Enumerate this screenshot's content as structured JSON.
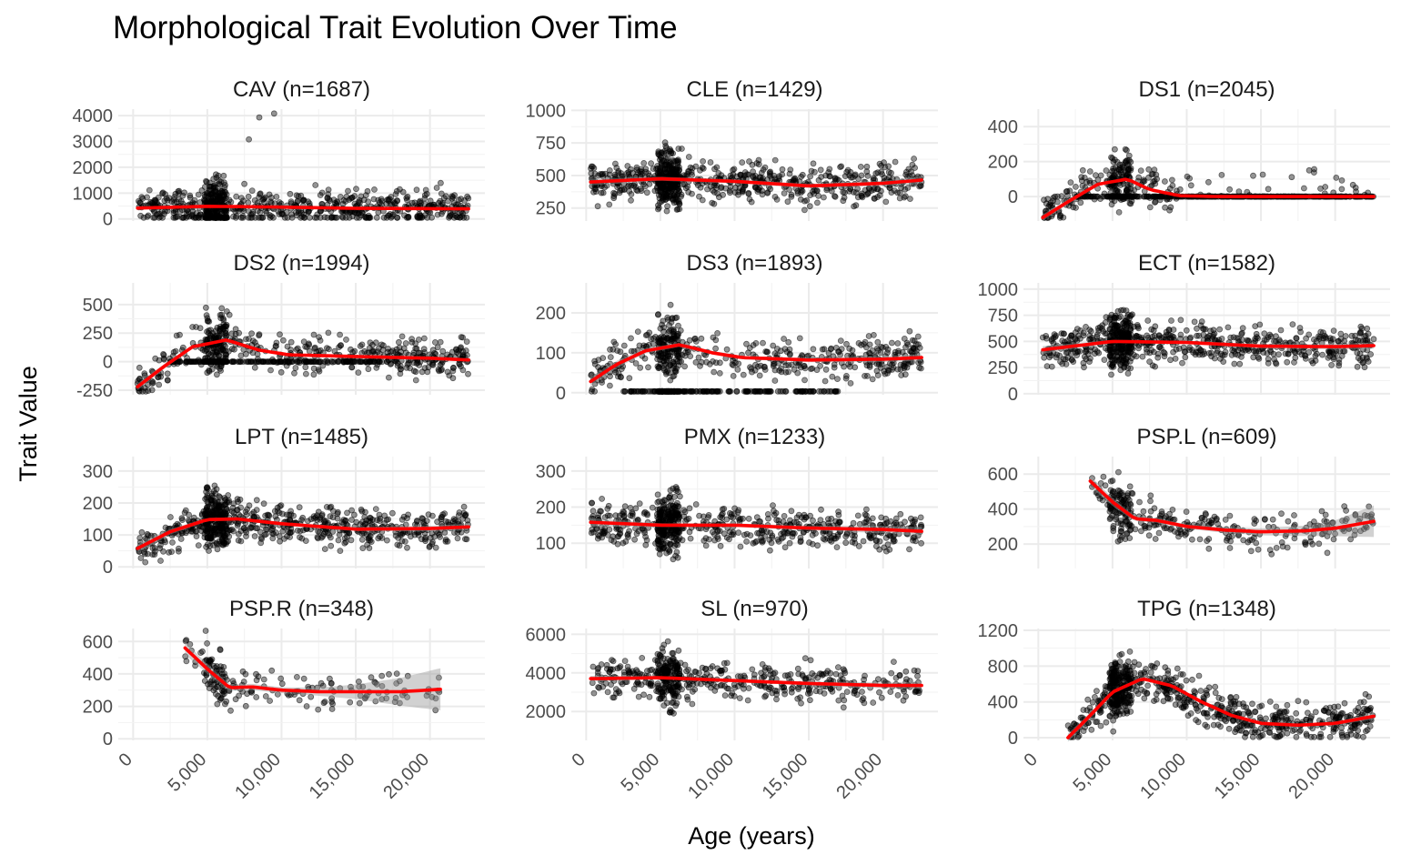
{
  "chart_data": {
    "type": "scatter",
    "title": "Morphological Trait Evolution Over Time",
    "xlabel": "Age (years)",
    "ylabel": "Trait Value",
    "facet_layout": {
      "rows": 4,
      "cols": 3,
      "shared_x": true,
      "free_y": true
    },
    "grid": true,
    "point_color": "#000000",
    "smooth_color": "#ff0000",
    "ribbon_color": "#999999",
    "xlim": [
      -1000,
      23700
    ],
    "xticks": [
      0,
      5000,
      10000,
      15000,
      20000
    ],
    "xtick_labels": [
      "0",
      "5,000",
      "10,000",
      "15,000",
      "20,000"
    ],
    "panels": [
      {
        "trait": "CAV",
        "n": 1687,
        "label": "CAV (n=1687)",
        "ylim": [
          -80,
          4250
        ],
        "yticks": [
          0,
          1000,
          2000,
          3000,
          4000
        ],
        "ytick_labels": [
          "0",
          "1000",
          "2000",
          "3000",
          "4000"
        ],
        "x_min": 300,
        "x_max": 22600,
        "smooth": [
          [
            300,
            420
          ],
          [
            5000,
            490
          ],
          [
            10000,
            460
          ],
          [
            15000,
            410
          ],
          [
            20000,
            400
          ],
          [
            22600,
            390
          ]
        ],
        "ribbon": [
          [
            300,
            60
          ],
          [
            5000,
            20
          ],
          [
            10000,
            20
          ],
          [
            15000,
            20
          ],
          [
            20000,
            25
          ],
          [
            22600,
            40
          ]
        ],
        "outliers": [
          [
            7800,
            3080
          ],
          [
            8500,
            3930
          ],
          [
            9500,
            4080
          ]
        ]
      },
      {
        "trait": "CLE",
        "n": 1429,
        "label": "CLE (n=1429)",
        "ylim": [
          150,
          1010
        ],
        "yticks": [
          250,
          500,
          750,
          1000
        ],
        "ytick_labels": [
          "250",
          "500",
          "750",
          "1000"
        ],
        "x_min": 300,
        "x_max": 22600,
        "smooth": [
          [
            300,
            450
          ],
          [
            5000,
            475
          ],
          [
            10000,
            455
          ],
          [
            15000,
            420
          ],
          [
            20000,
            440
          ],
          [
            22600,
            465
          ]
        ],
        "ribbon": [
          [
            300,
            25
          ],
          [
            5000,
            15
          ],
          [
            10000,
            15
          ],
          [
            15000,
            15
          ],
          [
            20000,
            20
          ],
          [
            22600,
            30
          ]
        ]
      },
      {
        "trait": "DS1",
        "n": 2045,
        "label": "DS1 (n=2045)",
        "ylim": [
          -140,
          500
        ],
        "yticks": [
          0,
          200,
          400
        ],
        "ytick_labels": [
          "0",
          "200",
          "400"
        ],
        "x_min": 300,
        "x_max": 22600,
        "smooth": [
          [
            300,
            -120
          ],
          [
            2000,
            -30
          ],
          [
            4000,
            70
          ],
          [
            6000,
            100
          ],
          [
            7500,
            40
          ],
          [
            9500,
            5
          ],
          [
            12000,
            0
          ],
          [
            16000,
            0
          ],
          [
            22600,
            0
          ]
        ],
        "ribbon": [
          [
            300,
            18
          ],
          [
            4000,
            8
          ],
          [
            6000,
            8
          ],
          [
            9500,
            5
          ],
          [
            22600,
            5
          ]
        ]
      },
      {
        "trait": "DS2",
        "n": 1994,
        "label": "DS2 (n=1994)",
        "ylim": [
          -290,
          690
        ],
        "yticks": [
          -250,
          0,
          250,
          500
        ],
        "ytick_labels": [
          "-250",
          "0",
          "250",
          "500"
        ],
        "x_min": 300,
        "x_max": 22600,
        "smooth": [
          [
            300,
            -220
          ],
          [
            2000,
            -50
          ],
          [
            4000,
            130
          ],
          [
            6300,
            190
          ],
          [
            8500,
            100
          ],
          [
            10500,
            60
          ],
          [
            15000,
            45
          ],
          [
            20000,
            30
          ],
          [
            22600,
            15
          ]
        ],
        "ribbon": [
          [
            300,
            30
          ],
          [
            4000,
            12
          ],
          [
            6300,
            12
          ],
          [
            10500,
            10
          ],
          [
            22600,
            15
          ]
        ]
      },
      {
        "trait": "DS3",
        "n": 1893,
        "label": "DS3 (n=1893)",
        "ylim": [
          -5,
          275
        ],
        "yticks": [
          0,
          100,
          200
        ],
        "ytick_labels": [
          "0",
          "100",
          "200"
        ],
        "x_min": 300,
        "x_max": 22600,
        "smooth": [
          [
            300,
            28
          ],
          [
            2000,
            70
          ],
          [
            4000,
            105
          ],
          [
            6300,
            120
          ],
          [
            8500,
            100
          ],
          [
            10500,
            88
          ],
          [
            15000,
            82
          ],
          [
            20000,
            84
          ],
          [
            22600,
            88
          ]
        ],
        "ribbon": [
          [
            300,
            12
          ],
          [
            4000,
            6
          ],
          [
            6300,
            5
          ],
          [
            10500,
            4
          ],
          [
            22600,
            8
          ]
        ]
      },
      {
        "trait": "ECT",
        "n": 1582,
        "label": "ECT (n=1582)",
        "ylim": [
          -10,
          1060
        ],
        "yticks": [
          0,
          250,
          500,
          750,
          1000
        ],
        "ytick_labels": [
          "0",
          "250",
          "500",
          "750",
          "1000"
        ],
        "x_min": 300,
        "x_max": 22600,
        "smooth": [
          [
            300,
            420
          ],
          [
            5000,
            500
          ],
          [
            10000,
            490
          ],
          [
            15000,
            455
          ],
          [
            20000,
            450
          ],
          [
            22600,
            460
          ]
        ],
        "ribbon": [
          [
            300,
            35
          ],
          [
            5000,
            15
          ],
          [
            10000,
            15
          ],
          [
            15000,
            20
          ],
          [
            22600,
            30
          ]
        ]
      },
      {
        "trait": "LPT",
        "n": 1485,
        "label": "LPT (n=1485)",
        "ylim": [
          -5,
          345
        ],
        "yticks": [
          0,
          100,
          200,
          300
        ],
        "ytick_labels": [
          "0",
          "100",
          "200",
          "300"
        ],
        "x_min": 300,
        "x_max": 22600,
        "smooth": [
          [
            300,
            58
          ],
          [
            2500,
            110
          ],
          [
            5000,
            148
          ],
          [
            7000,
            150
          ],
          [
            10000,
            135
          ],
          [
            15000,
            118
          ],
          [
            20000,
            120
          ],
          [
            22600,
            125
          ]
        ],
        "ribbon": [
          [
            300,
            12
          ],
          [
            5000,
            5
          ],
          [
            10000,
            5
          ],
          [
            15000,
            6
          ],
          [
            22600,
            10
          ]
        ]
      },
      {
        "trait": "PMX",
        "n": 1233,
        "label": "PMX (n=1233)",
        "ylim": [
          30,
          340
        ],
        "yticks": [
          100,
          200,
          300
        ],
        "ytick_labels": [
          "100",
          "200",
          "300"
        ],
        "x_min": 300,
        "x_max": 22600,
        "smooth": [
          [
            300,
            158
          ],
          [
            5000,
            150
          ],
          [
            10000,
            150
          ],
          [
            15000,
            142
          ],
          [
            20000,
            138
          ],
          [
            22600,
            133
          ]
        ],
        "ribbon": [
          [
            300,
            12
          ],
          [
            5000,
            5
          ],
          [
            10000,
            5
          ],
          [
            15000,
            6
          ],
          [
            22600,
            12
          ]
        ]
      },
      {
        "trait": "PSP.L",
        "n": 609,
        "label": "PSP.L (n=609)",
        "ylim": [
          60,
          700
        ],
        "yticks": [
          200,
          400,
          600
        ],
        "ytick_labels": [
          "200",
          "400",
          "600"
        ],
        "x_min": 3500,
        "x_max": 22600,
        "smooth": [
          [
            3500,
            560
          ],
          [
            5000,
            440
          ],
          [
            6500,
            345
          ],
          [
            8000,
            335
          ],
          [
            10000,
            300
          ],
          [
            12500,
            280
          ],
          [
            15000,
            270
          ],
          [
            18000,
            275
          ],
          [
            20000,
            290
          ],
          [
            22600,
            330
          ]
        ],
        "ribbon": [
          [
            3500,
            30
          ],
          [
            6500,
            15
          ],
          [
            10000,
            12
          ],
          [
            15000,
            20
          ],
          [
            18000,
            30
          ],
          [
            20000,
            45
          ],
          [
            22600,
            90
          ]
        ]
      },
      {
        "trait": "PSP.R",
        "n": 348,
        "label": "PSP.R (n=348)",
        "ylim": [
          -10,
          680
        ],
        "yticks": [
          0,
          200,
          400,
          600
        ],
        "ytick_labels": [
          "0",
          "200",
          "400",
          "600"
        ],
        "x_min": 3500,
        "x_max": 20700,
        "smooth": [
          [
            3500,
            560
          ],
          [
            5000,
            430
          ],
          [
            6500,
            315
          ],
          [
            8000,
            320
          ],
          [
            10000,
            300
          ],
          [
            12500,
            290
          ],
          [
            15000,
            290
          ],
          [
            18000,
            290
          ],
          [
            20700,
            305
          ]
        ],
        "ribbon": [
          [
            3500,
            40
          ],
          [
            6500,
            20
          ],
          [
            10000,
            18
          ],
          [
            12500,
            25
          ],
          [
            15000,
            45
          ],
          [
            18000,
            85
          ],
          [
            20700,
            130
          ]
        ]
      },
      {
        "trait": "SL",
        "n": 970,
        "label": "SL (n=970)",
        "ylim": [
          500,
          6300
        ],
        "yticks": [
          2000,
          4000,
          6000
        ],
        "ytick_labels": [
          "2000",
          "4000",
          "6000"
        ],
        "x_min": 300,
        "x_max": 22600,
        "smooth": [
          [
            300,
            3700
          ],
          [
            5000,
            3750
          ],
          [
            10000,
            3600
          ],
          [
            15000,
            3450
          ],
          [
            20000,
            3350
          ],
          [
            22600,
            3350
          ]
        ],
        "ribbon": [
          [
            300,
            150
          ],
          [
            5000,
            80
          ],
          [
            10000,
            80
          ],
          [
            15000,
            100
          ],
          [
            22600,
            180
          ]
        ]
      },
      {
        "trait": "TPG",
        "n": 1348,
        "label": "TPG (n=1348)",
        "ylim": [
          -30,
          1220
        ],
        "yticks": [
          0,
          400,
          800,
          1200
        ],
        "ytick_labels": [
          "0",
          "400",
          "800",
          "1200"
        ],
        "x_min": 2000,
        "x_max": 22600,
        "smooth": [
          [
            2000,
            0
          ],
          [
            3500,
            250
          ],
          [
            5000,
            510
          ],
          [
            7000,
            660
          ],
          [
            9000,
            580
          ],
          [
            11000,
            400
          ],
          [
            13000,
            250
          ],
          [
            15000,
            160
          ],
          [
            17500,
            140
          ],
          [
            20000,
            160
          ],
          [
            22600,
            240
          ]
        ],
        "ribbon": [
          [
            2000,
            45
          ],
          [
            5000,
            20
          ],
          [
            7000,
            18
          ],
          [
            11000,
            15
          ],
          [
            15000,
            15
          ],
          [
            20000,
            18
          ],
          [
            22600,
            35
          ]
        ]
      }
    ]
  }
}
